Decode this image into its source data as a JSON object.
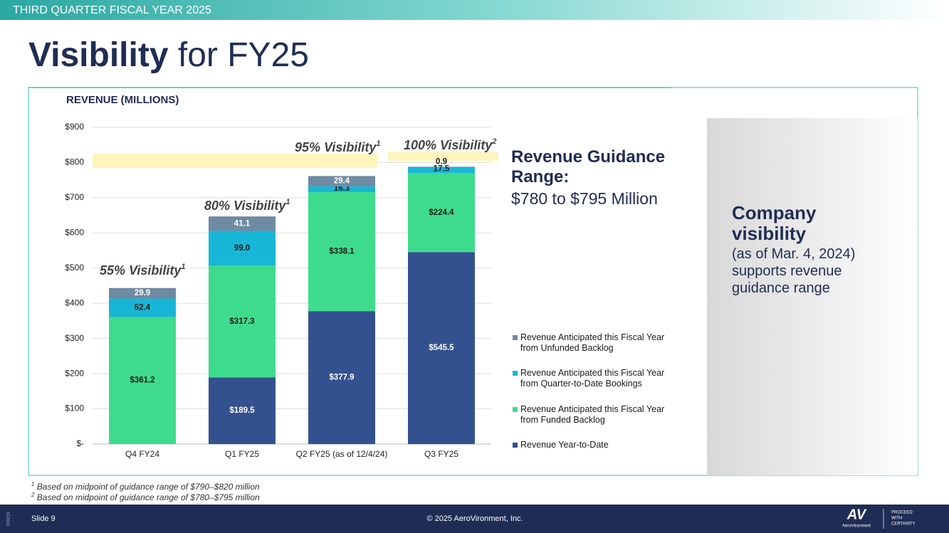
{
  "header": "THIRD QUARTER FISCAL YEAR 2025",
  "title_bold": "Visibility",
  "title_rest": "for FY25",
  "guidance": {
    "heading": "Revenue Guidance Range:",
    "range": "$780 to $795 Million"
  },
  "panel": {
    "heading": "Company visibility",
    "note": "(as of Mar. 4, 2024)",
    "body": "supports revenue guidance range"
  },
  "footnotes": [
    {
      "mark": "1",
      "text": "Based on midpoint of guidance range of $790–$820 million"
    },
    {
      "mark": "2",
      "text": "Based on midpoint of guidance range of $780–$795 million"
    }
  ],
  "footer": {
    "slide": "Slide 9",
    "copyright": "© 2025 AeroVironment, Inc.",
    "logo": "AV",
    "logo_sub": "AeroVironment",
    "tagline": [
      "PROCEED",
      "WITH",
      "CERTAINTY"
    ],
    "side_code": "030224"
  },
  "chart_data": {
    "type": "stacked_bar",
    "title": "REVENUE (MILLIONS)",
    "categories": [
      "Q4 FY24",
      "Q1 FY25",
      "Q2 FY25 (as of 12/4/24)",
      "Q3 FY25"
    ],
    "series": [
      {
        "name": "Revenue Year-to-Date",
        "color": "#34518f",
        "label_color": "#ffffff",
        "values": [
          null,
          189.5,
          377.9,
          545.5
        ],
        "value_labels": [
          null,
          "$189.5",
          "$377.9",
          "$545.5"
        ]
      },
      {
        "name": "Revenue Anticipated this Fiscal Year from Funded Backlog",
        "color": "#3fdb8c",
        "label_color": "#1a1a1a",
        "values": [
          361.2,
          317.3,
          338.1,
          224.4
        ],
        "value_labels": [
          "$361.2",
          "$317.3",
          "$338.1",
          "$224.4"
        ]
      },
      {
        "name": "Revenue Anticipated this Fiscal Year from Quarter-to-Date Bookings",
        "color": "#18b6d6",
        "label_color": "#1a1a1a",
        "values": [
          52.4,
          99.0,
          16.3,
          17.5
        ],
        "value_labels": [
          "52.4",
          "99.0",
          "16.3",
          "17.5"
        ]
      },
      {
        "name": "Revenue Anticipated this Fiscal Year from Unfunded Backlog",
        "color": "#6f8aa3",
        "label_color": "#ffffff",
        "values": [
          29.9,
          41.1,
          29.4,
          0.9
        ],
        "value_labels": [
          "29.9",
          "41.1",
          "29.4",
          "0.9"
        ]
      }
    ],
    "annotations": [
      {
        "text": "55% Visibility",
        "sup": "1"
      },
      {
        "text": "80% Visibility",
        "sup": "1"
      },
      {
        "text": "95% Visibility",
        "sup": "1"
      },
      {
        "text": "100% Visibility",
        "sup": "2"
      }
    ],
    "bands": [
      {
        "from": 785,
        "to": 825,
        "color": "#fdf3b0"
      },
      {
        "from": 805,
        "to": 830,
        "color": "#fdf3b0"
      }
    ],
    "ylim": [
      0,
      900
    ],
    "yticks": [
      {
        "value": 0,
        "label": "$-"
      },
      {
        "value": 100,
        "label": "$100"
      },
      {
        "value": 200,
        "label": "$200"
      },
      {
        "value": 300,
        "label": "$300"
      },
      {
        "value": 400,
        "label": "$400"
      },
      {
        "value": 500,
        "label": "$500"
      },
      {
        "value": 600,
        "label": "$600"
      },
      {
        "value": 700,
        "label": "$700"
      },
      {
        "value": 800,
        "label": "$800"
      },
      {
        "value": 900,
        "label": "$900"
      }
    ],
    "grid": true
  }
}
